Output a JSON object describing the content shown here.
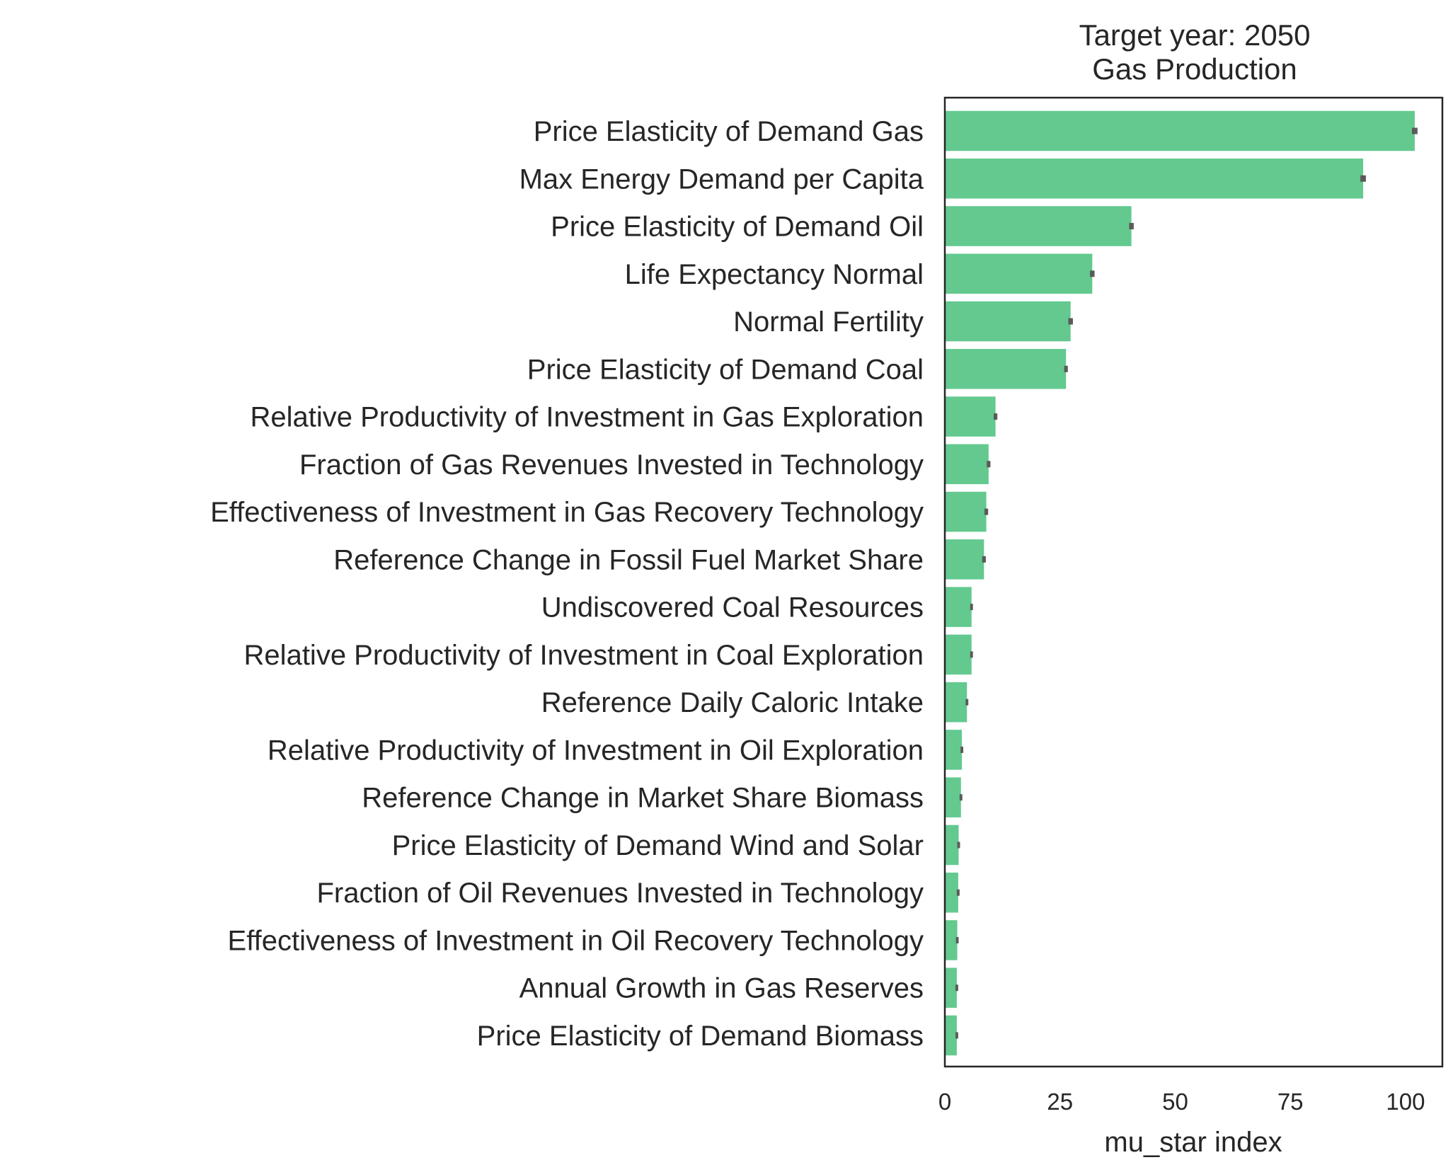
{
  "chart_data": {
    "type": "bar",
    "orientation": "horizontal",
    "title_line1": "Target year: 2050",
    "title_line2": "Gas Production",
    "xlabel": "mu_star index",
    "ylabel": "",
    "xlim": [
      0,
      108
    ],
    "xticks": [
      0,
      25,
      50,
      75,
      100
    ],
    "grid": false,
    "bar_color": "#63c98f",
    "error_color": "#5a5a5a",
    "categories": [
      "Price Elasticity of Demand Gas",
      "Max Energy Demand per Capita",
      "Price Elasticity of Demand Oil",
      "Life Expectancy Normal",
      "Normal Fertility",
      "Price Elasticity of Demand Coal",
      "Relative Productivity of Investment in Gas Exploration",
      "Fraction of Gas Revenues Invested in Technology",
      "Effectiveness of Investment in Gas Recovery Technology",
      "Reference Change in Fossil Fuel Market Share",
      "Undiscovered Coal Resources",
      "Relative Productivity of Investment in Coal Exploration",
      "Reference Daily Caloric Intake",
      "Relative Productivity of Investment in Oil Exploration",
      "Reference Change in Market Share Biomass",
      "Price Elasticity of Demand Wind and Solar",
      "Fraction of Oil Revenues Invested in Technology",
      "Effectiveness of Investment in Oil Recovery Technology",
      "Annual Growth in Gas Reserves",
      "Price Elasticity of Demand Biomass"
    ],
    "values": [
      102.0,
      90.8,
      40.5,
      32.0,
      27.3,
      26.3,
      11.0,
      9.5,
      9.0,
      8.5,
      5.8,
      5.8,
      4.8,
      3.7,
      3.5,
      3.0,
      2.9,
      2.7,
      2.6,
      2.6
    ],
    "errors": [
      0.6,
      0.6,
      0.5,
      0.5,
      0.5,
      0.4,
      0.4,
      0.4,
      0.4,
      0.4,
      0.3,
      0.3,
      0.3,
      0.3,
      0.3,
      0.3,
      0.3,
      0.3,
      0.3,
      0.3
    ]
  }
}
